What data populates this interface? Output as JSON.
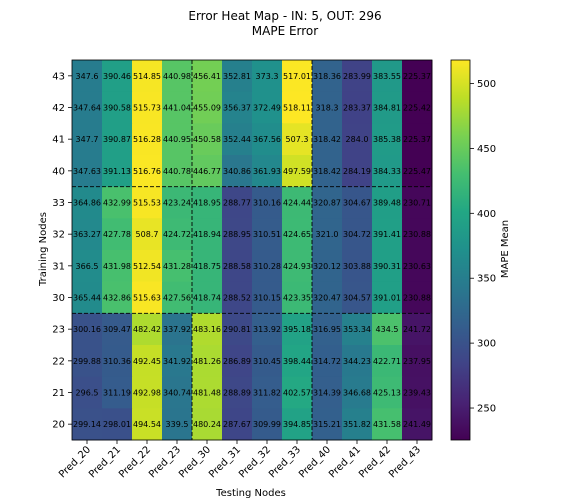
{
  "chart_data": {
    "type": "heatmap",
    "title": "Error Heat Map - IN: 5, OUT: 296",
    "subtitle": "MAPE Error",
    "xlabel": "Testing Nodes",
    "ylabel": "Training Nodes",
    "x_categories": [
      "Pred_20",
      "Pred_21",
      "Pred_22",
      "Pred_23",
      "Pred_30",
      "Pred_31",
      "Pred_32",
      "Pred_33",
      "Pred_40",
      "Pred_41",
      "Pred_42",
      "Pred_43"
    ],
    "y_categories": [
      "43",
      "42",
      "41",
      "40",
      "33",
      "32",
      "31",
      "30",
      "23",
      "22",
      "21",
      "20"
    ],
    "values": [
      [
        347.6,
        390.46,
        514.85,
        440.98,
        456.41,
        352.81,
        373.3,
        517.01,
        318.36,
        283.99,
        383.55,
        225.37
      ],
      [
        347.64,
        390.58,
        515.73,
        441.04,
        455.09,
        356.37,
        372.49,
        518.11,
        318.3,
        283.37,
        384.81,
        225.42
      ],
      [
        347.7,
        390.87,
        516.28,
        440.95,
        450.58,
        352.44,
        367.56,
        507.3,
        318.42,
        284.0,
        385.38,
        225.37
      ],
      [
        347.63,
        391.13,
        516.76,
        440.78,
        446.77,
        340.86,
        361.93,
        497.59,
        318.42,
        284.19,
        384.33,
        225.47
      ],
      [
        364.86,
        432.99,
        515.53,
        423.24,
        418.95,
        288.77,
        310.16,
        424.44,
        320.87,
        304.67,
        389.48,
        230.71
      ],
      [
        363.27,
        427.78,
        508.7,
        424.72,
        418.94,
        288.95,
        310.51,
        424.65,
        321.0,
        304.72,
        391.41,
        230.88
      ],
      [
        366.5,
        431.98,
        512.54,
        431.28,
        418.75,
        288.58,
        310.28,
        424.93,
        320.12,
        303.88,
        390.31,
        230.63
      ],
      [
        365.44,
        432.86,
        515.63,
        427.56,
        418.74,
        288.52,
        310.15,
        423.35,
        320.47,
        304.57,
        391.01,
        230.88
      ],
      [
        300.16,
        309.47,
        482.42,
        337.92,
        483.16,
        290.81,
        313.92,
        395.18,
        316.95,
        353.34,
        434.5,
        241.72
      ],
      [
        299.88,
        310.36,
        492.45,
        341.92,
        481.26,
        286.89,
        310.45,
        398.44,
        314.72,
        344.23,
        422.71,
        237.95
      ],
      [
        296.5,
        311.19,
        492.98,
        340.74,
        481.48,
        288.89,
        311.82,
        402.57,
        314.39,
        346.68,
        425.13,
        239.43
      ],
      [
        299.14,
        298.01,
        494.54,
        339.5,
        480.24,
        287.67,
        309.99,
        394.85,
        315.21,
        351.82,
        431.58,
        241.49
      ]
    ],
    "cell_labels": [
      [
        "347.6",
        "390.46",
        "514.85",
        "440.98",
        "456.41",
        "352.81",
        "373.3",
        "517.01",
        "318.36",
        "283.99",
        "383.55",
        "225.37"
      ],
      [
        "347.64",
        "390.58",
        "515.73",
        "441.04",
        "455.09",
        "356.37",
        "372.49",
        "518.11",
        "318.3",
        "283.37",
        "384.81",
        "225.42"
      ],
      [
        "347.7",
        "390.87",
        "516.28",
        "440.95",
        "450.58",
        "352.44",
        "367.56",
        "507.3",
        "318.42",
        "284.0",
        "385.38",
        "225.37"
      ],
      [
        "347.63",
        "391.13",
        "516.76",
        "440.78",
        "446.77",
        "340.86",
        "361.93",
        "497.59",
        "318.42",
        "284.19",
        "384.33",
        "225.47"
      ],
      [
        "364.86",
        "432.99",
        "515.53",
        "423.24",
        "418.95",
        "288.77",
        "310.16",
        "424.44",
        "320.87",
        "304.67",
        "389.48",
        "230.71"
      ],
      [
        "363.27",
        "427.78",
        "508.7",
        "424.72",
        "418.94",
        "288.95",
        "310.51",
        "424.65",
        "321.0",
        "304.72",
        "391.41",
        "230.88"
      ],
      [
        "366.5",
        "431.98",
        "512.54",
        "431.28",
        "418.75",
        "288.58",
        "310.28",
        "424.93",
        "320.12",
        "303.88",
        "390.31",
        "230.63"
      ],
      [
        "365.44",
        "432.86",
        "515.63",
        "427.56",
        "418.74",
        "288.52",
        "310.15",
        "423.35",
        "320.47",
        "304.57",
        "391.01",
        "230.88"
      ],
      [
        "300.16",
        "309.47",
        "482.42",
        "337.92",
        "483.16",
        "290.81",
        "313.92",
        "395.18",
        "316.95",
        "353.34",
        "434.5",
        "241.72"
      ],
      [
        "299.88",
        "310.36",
        "492.45",
        "341.92",
        "481.26",
        "286.89",
        "310.45",
        "398.44",
        "314.72",
        "344.23",
        "422.71",
        "237.95"
      ],
      [
        "296.5",
        "311.19",
        "492.98",
        "340.74",
        "481.48",
        "288.89",
        "311.82",
        "402.57",
        "314.39",
        "346.68",
        "425.13",
        "239.43"
      ],
      [
        "299.14",
        "298.01",
        "494.54",
        "339.5",
        "480.24",
        "287.67",
        "309.99",
        "394.85",
        "315.21",
        "351.82",
        "431.58",
        "241.49"
      ]
    ],
    "colorscale": "viridis",
    "zlim": [
      225.37,
      518.11
    ],
    "colorbar": {
      "label": "MAPE Mean",
      "ticks": [
        250,
        300,
        350,
        400,
        450,
        500
      ],
      "tick_labels": [
        "250",
        "300",
        "350",
        "400",
        "450",
        "500"
      ]
    },
    "group_dividers": "dashed black lines every 4 rows and every 4 columns"
  }
}
